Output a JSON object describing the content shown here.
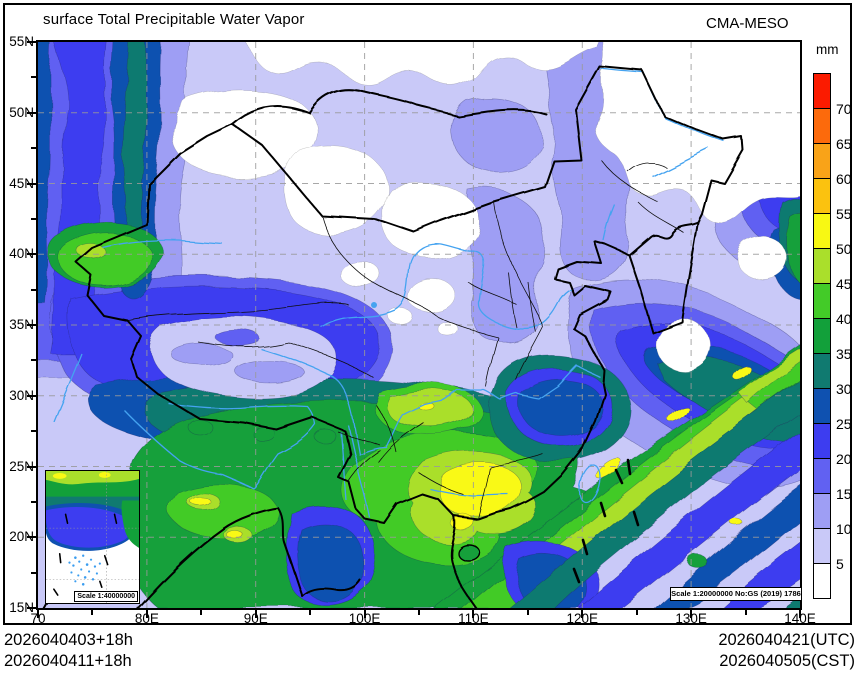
{
  "header": {
    "title": "surface Total Precipitable Water Vapor",
    "model": "CMA-MESO"
  },
  "colorbar": {
    "unit": "mm",
    "levels": [
      "70",
      "65",
      "60",
      "55",
      "50",
      "45",
      "40",
      "35",
      "30",
      "25",
      "20",
      "15",
      "10",
      "5"
    ],
    "colors_top_to_bottom": [
      "#fb1b00",
      "#fc6a0c",
      "#f9a318",
      "#fbc20f",
      "#f8f813",
      "#aadf2b",
      "#43cb28",
      "#12a03a",
      "#107a70",
      "#0f51b0",
      "#3d3df0",
      "#6161f2",
      "#9e9ef4",
      "#c9c9f8",
      "#ffffff"
    ]
  },
  "axes": {
    "lat_labels": [
      "55N",
      "50N",
      "45N",
      "40N",
      "35N",
      "30N",
      "25N",
      "20N",
      "15N"
    ],
    "lon_labels": [
      "70",
      "80E",
      "90E",
      "100E",
      "110E",
      "120E",
      "130E",
      "140E"
    ]
  },
  "map_annotations": {
    "scale_note": "Scale 1:20000000 No:GS (2019) 1786",
    "inset_scale_note": "Scale 1:40000000"
  },
  "footer": {
    "run_line1": "2026040403+18h",
    "run_line2": "2026040411+18h",
    "valid_line1": "2026040421(UTC)",
    "valid_line2": "2026040505(CST)"
  }
}
